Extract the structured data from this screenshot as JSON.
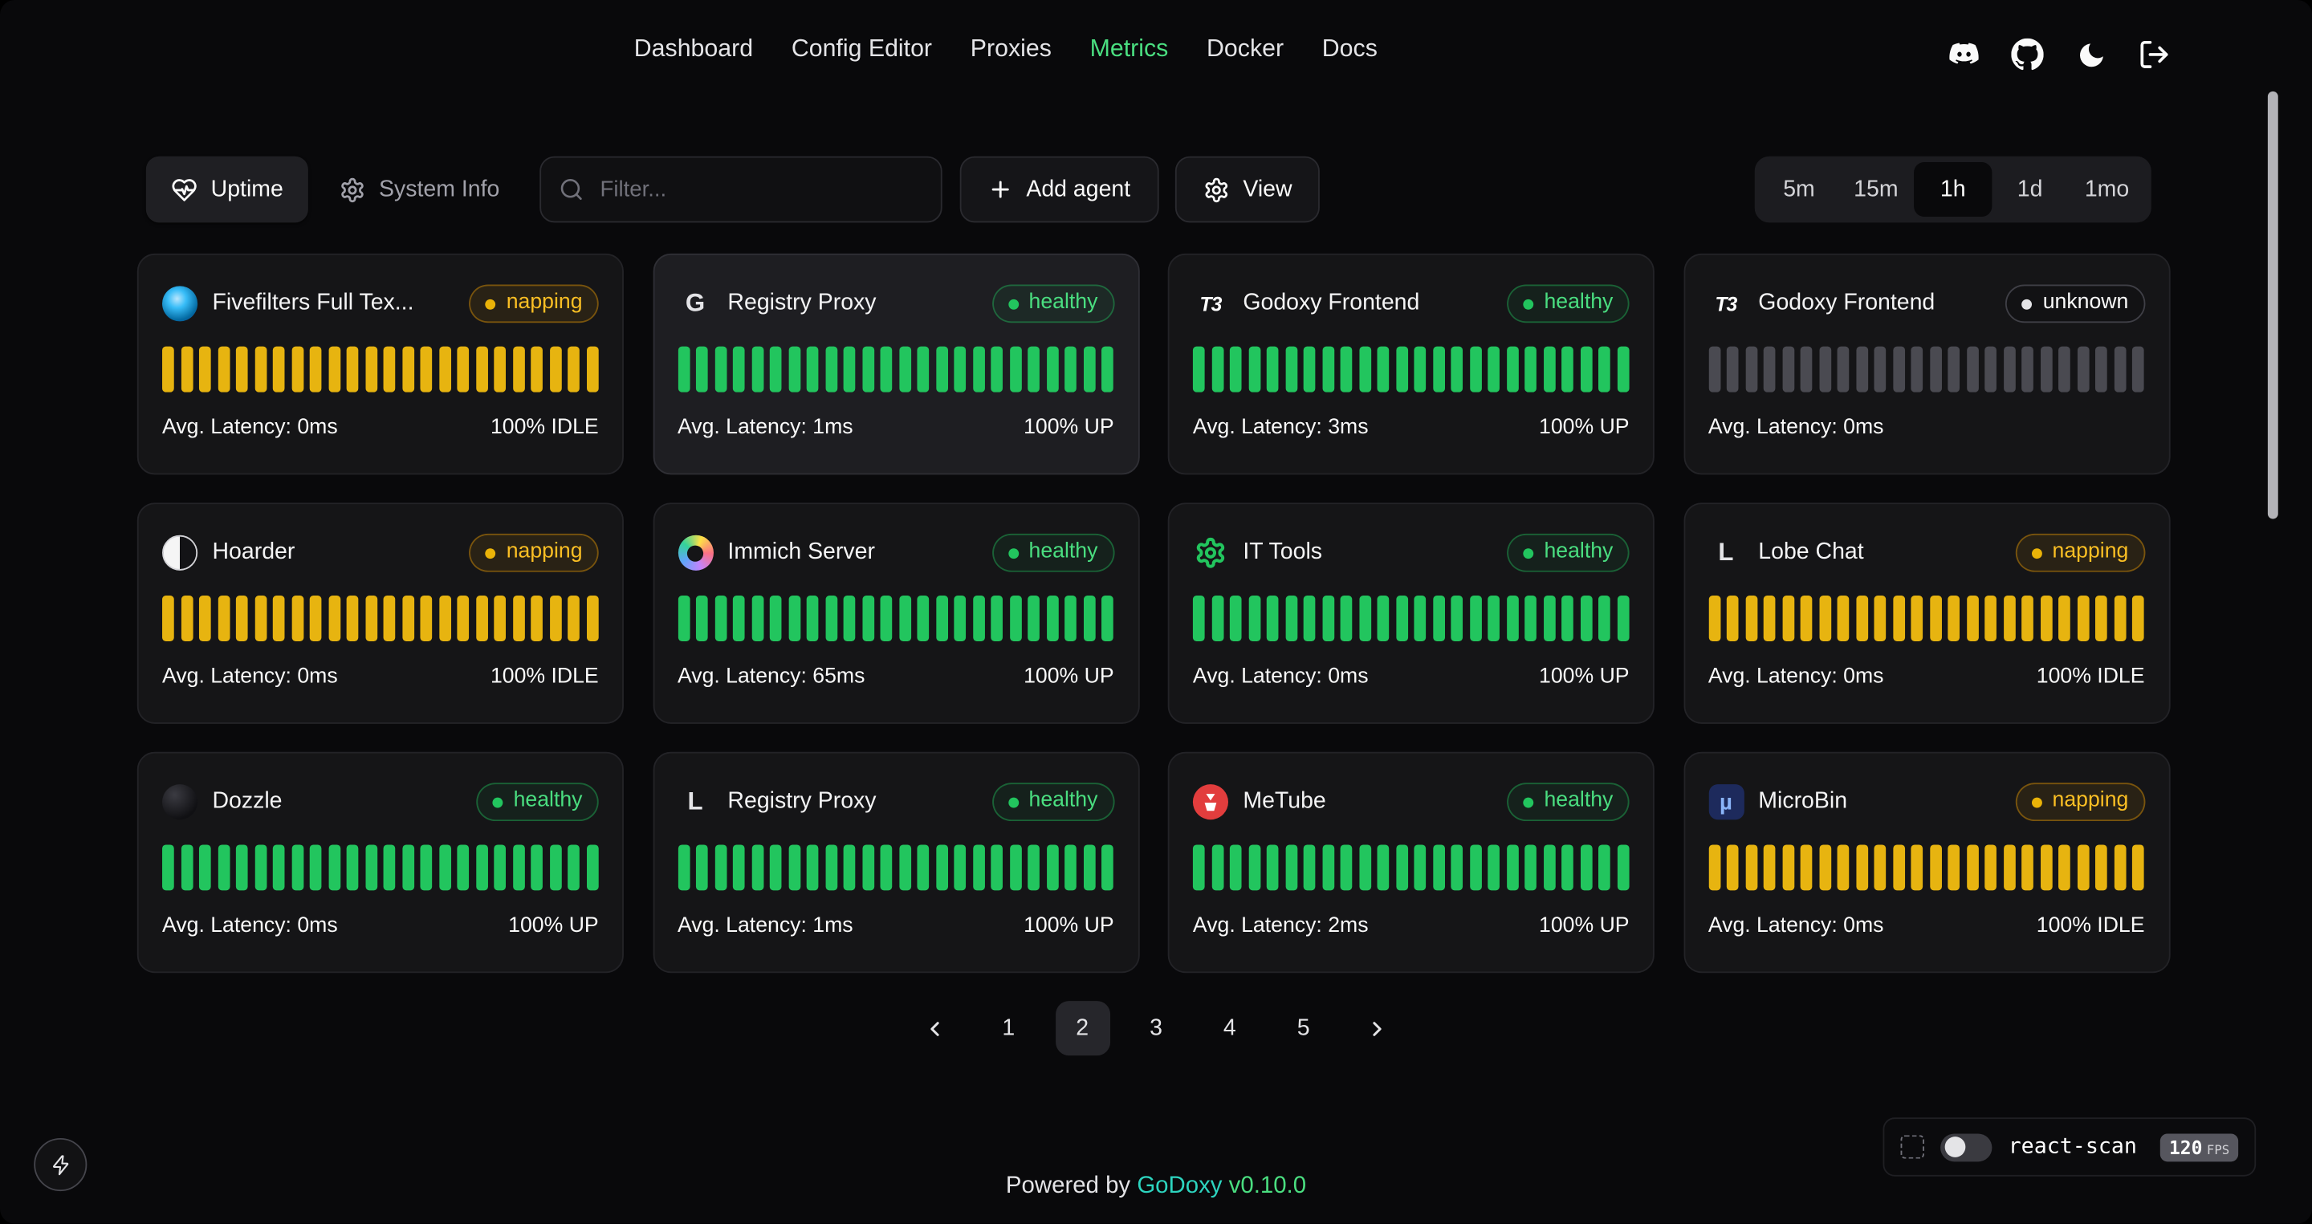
{
  "nav": {
    "items": [
      {
        "label": "Dashboard",
        "active": false
      },
      {
        "label": "Config Editor",
        "active": false
      },
      {
        "label": "Proxies",
        "active": false
      },
      {
        "label": "Metrics",
        "active": true
      },
      {
        "label": "Docker",
        "active": false
      },
      {
        "label": "Docs",
        "active": false
      }
    ],
    "icons": [
      "discord-icon",
      "github-icon",
      "moon-icon",
      "logout-icon"
    ]
  },
  "toolbar": {
    "uptime": "Uptime",
    "system_info": "System Info",
    "filter_placeholder": "Filter...",
    "add_agent": "Add agent",
    "view": "View",
    "time_ranges": [
      {
        "label": "5m",
        "active": false
      },
      {
        "label": "15m",
        "active": false
      },
      {
        "label": "1h",
        "active": true
      },
      {
        "label": "1d",
        "active": false
      },
      {
        "label": "1mo",
        "active": false
      }
    ]
  },
  "uptime_bars_per_card": 24,
  "cards": [
    {
      "name": "Fivefilters Full Tex...",
      "status": "napping",
      "latency": "Avg. Latency: 0ms",
      "uptime": "100% IDLE",
      "bar_color": "yellow",
      "icon_type": "fivefilters",
      "icon_glyph": ""
    },
    {
      "name": "Registry Proxy",
      "status": "healthy",
      "latency": "Avg. Latency: 1ms",
      "uptime": "100% UP",
      "bar_color": "green",
      "icon_type": "letter",
      "icon_glyph": "G",
      "highlighted": true
    },
    {
      "name": "Godoxy Frontend",
      "status": "healthy",
      "latency": "Avg. Latency: 3ms",
      "uptime": "100% UP",
      "bar_color": "green",
      "icon_type": "t3",
      "icon_glyph": "T3"
    },
    {
      "name": "Godoxy Frontend",
      "status": "unknown",
      "latency": "Avg. Latency: 0ms",
      "uptime": "",
      "bar_color": "gray",
      "icon_type": "t3",
      "icon_glyph": "T3"
    },
    {
      "name": "Hoarder",
      "status": "napping",
      "latency": "Avg. Latency: 0ms",
      "uptime": "100% IDLE",
      "bar_color": "yellow",
      "icon_type": "hoarder",
      "icon_glyph": ""
    },
    {
      "name": "Immich Server",
      "status": "healthy",
      "latency": "Avg. Latency: 65ms",
      "uptime": "100% UP",
      "bar_color": "green",
      "icon_type": "immich",
      "icon_glyph": ""
    },
    {
      "name": "IT Tools",
      "status": "healthy",
      "latency": "Avg. Latency: 0ms",
      "uptime": "100% UP",
      "bar_color": "green",
      "icon_type": "gear",
      "icon_glyph": ""
    },
    {
      "name": "Lobe Chat",
      "status": "napping",
      "latency": "Avg. Latency: 0ms",
      "uptime": "100% IDLE",
      "bar_color": "yellow",
      "icon_type": "letter",
      "icon_glyph": "L"
    },
    {
      "name": "Dozzle",
      "status": "healthy",
      "latency": "Avg. Latency: 0ms",
      "uptime": "100% UP",
      "bar_color": "green",
      "icon_type": "dozzle",
      "icon_glyph": ""
    },
    {
      "name": "Registry Proxy",
      "status": "healthy",
      "latency": "Avg. Latency: 1ms",
      "uptime": "100% UP",
      "bar_color": "green",
      "icon_type": "letter",
      "icon_glyph": "L"
    },
    {
      "name": "MeTube",
      "status": "healthy",
      "latency": "Avg. Latency: 2ms",
      "uptime": "100% UP",
      "bar_color": "green",
      "icon_type": "metube",
      "icon_glyph": ""
    },
    {
      "name": "MicroBin",
      "status": "napping",
      "latency": "Avg. Latency: 0ms",
      "uptime": "100% IDLE",
      "bar_color": "yellow",
      "icon_type": "microbin",
      "icon_glyph": "µ"
    }
  ],
  "pagination": {
    "pages": [
      "1",
      "2",
      "3",
      "4",
      "5"
    ],
    "active_page": "2"
  },
  "footer": {
    "powered_by": "Powered by",
    "brand": "GoDoxy",
    "version": "v0.10.0"
  },
  "react_scan": {
    "label": "react-scan",
    "fps_value": "120",
    "fps_unit": "FPS"
  },
  "colors": {
    "accent_green": "#4ade80",
    "bar_green": "#22c55e",
    "bar_yellow": "#e7b410",
    "bar_gray": "#4a4a51",
    "brand_teal": "#2dd4bf"
  }
}
